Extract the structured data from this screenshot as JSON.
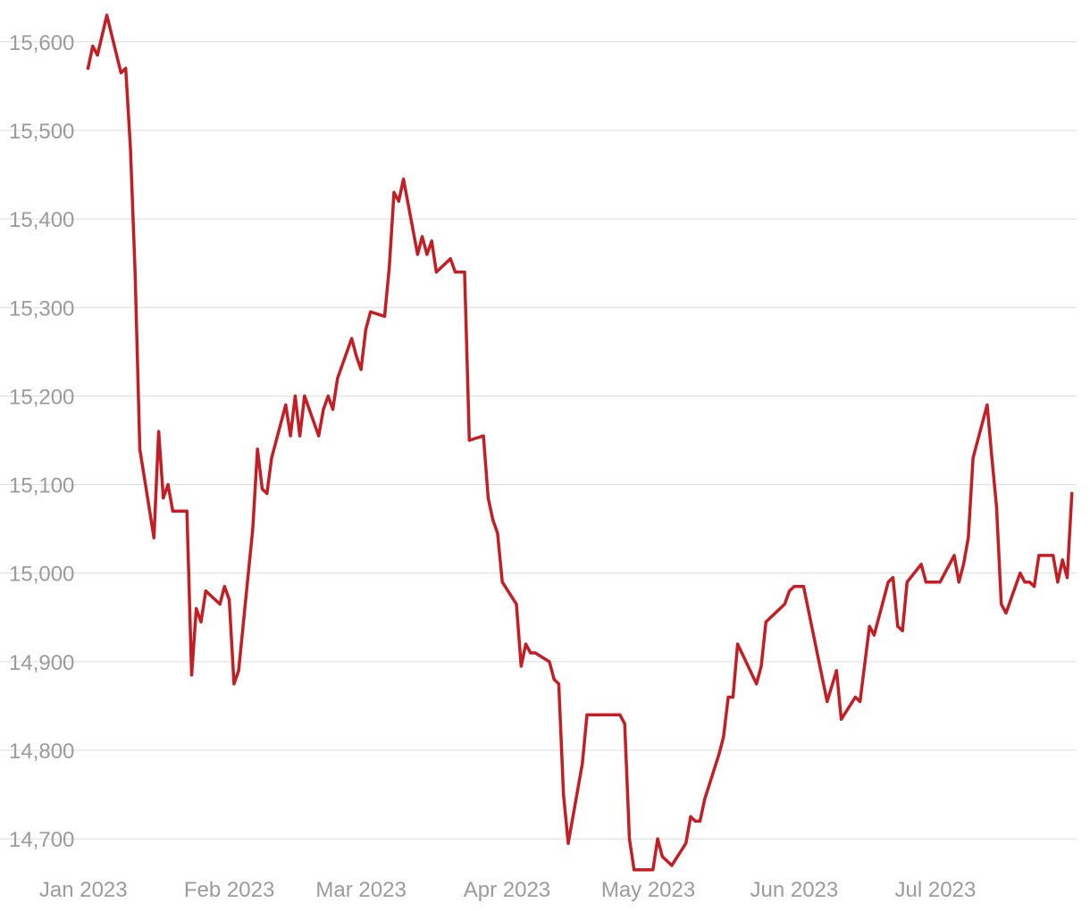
{
  "chart_data": {
    "type": "line",
    "title": "",
    "xlabel": "",
    "ylabel": "",
    "xlim": [
      "2022-12-31",
      "2023-07-31"
    ],
    "ylim": [
      14675,
      15625
    ],
    "grid": "horizontal",
    "colors": {
      "line": "#c41e24",
      "grid": "#dcdcdc",
      "tick_text": "#9b9b9b"
    },
    "y_ticks": [
      {
        "value": 14700,
        "label": "14,700"
      },
      {
        "value": 14800,
        "label": "14,800"
      },
      {
        "value": 14900,
        "label": "14,900"
      },
      {
        "value": 15000,
        "label": "15,000"
      },
      {
        "value": 15100,
        "label": "15,100"
      },
      {
        "value": 15200,
        "label": "15,200"
      },
      {
        "value": 15300,
        "label": "15,300"
      },
      {
        "value": 15400,
        "label": "15,400"
      },
      {
        "value": 15500,
        "label": "15,500"
      },
      {
        "value": 15600,
        "label": "15,600"
      }
    ],
    "x_ticks": [
      {
        "value": "2023-01-01",
        "label": "Jan 2023"
      },
      {
        "value": "2023-02-01",
        "label": "Feb 2023"
      },
      {
        "value": "2023-03-01",
        "label": "Mar 2023"
      },
      {
        "value": "2023-04-01",
        "label": "Apr 2023"
      },
      {
        "value": "2023-05-01",
        "label": "May 2023"
      },
      {
        "value": "2023-06-01",
        "label": "Jun 2023"
      },
      {
        "value": "2023-07-01",
        "label": "Jul 2023"
      }
    ],
    "series": [
      {
        "points": [
          [
            "2023-01-02",
            15570
          ],
          [
            "2023-01-03",
            15595
          ],
          [
            "2023-01-04",
            15585
          ],
          [
            "2023-01-06",
            15630
          ],
          [
            "2023-01-09",
            15565
          ],
          [
            "2023-01-10",
            15570
          ],
          [
            "2023-01-11",
            15480
          ],
          [
            "2023-01-12",
            15340
          ],
          [
            "2023-01-13",
            15140
          ],
          [
            "2023-01-16",
            15040
          ],
          [
            "2023-01-17",
            15160
          ],
          [
            "2023-01-18",
            15085
          ],
          [
            "2023-01-19",
            15100
          ],
          [
            "2023-01-20",
            15070
          ],
          [
            "2023-01-23",
            15070
          ],
          [
            "2023-01-24",
            14885
          ],
          [
            "2023-01-25",
            14960
          ],
          [
            "2023-01-26",
            14945
          ],
          [
            "2023-01-27",
            14980
          ],
          [
            "2023-01-30",
            14965
          ],
          [
            "2023-01-31",
            14985
          ],
          [
            "2023-02-01",
            14970
          ],
          [
            "2023-02-02",
            14875
          ],
          [
            "2023-02-03",
            14890
          ],
          [
            "2023-02-06",
            15050
          ],
          [
            "2023-02-07",
            15140
          ],
          [
            "2023-02-08",
            15095
          ],
          [
            "2023-02-09",
            15090
          ],
          [
            "2023-02-10",
            15130
          ],
          [
            "2023-02-13",
            15190
          ],
          [
            "2023-02-14",
            15155
          ],
          [
            "2023-02-15",
            15200
          ],
          [
            "2023-02-16",
            15155
          ],
          [
            "2023-02-17",
            15200
          ],
          [
            "2023-02-20",
            15155
          ],
          [
            "2023-02-21",
            15185
          ],
          [
            "2023-02-22",
            15200
          ],
          [
            "2023-02-23",
            15185
          ],
          [
            "2023-02-24",
            15220
          ],
          [
            "2023-02-27",
            15265
          ],
          [
            "2023-02-28",
            15245
          ],
          [
            "2023-03-01",
            15230
          ],
          [
            "2023-03-02",
            15275
          ],
          [
            "2023-03-03",
            15295
          ],
          [
            "2023-03-06",
            15290
          ],
          [
            "2023-03-07",
            15345
          ],
          [
            "2023-03-08",
            15430
          ],
          [
            "2023-03-09",
            15420
          ],
          [
            "2023-03-10",
            15445
          ],
          [
            "2023-03-13",
            15360
          ],
          [
            "2023-03-14",
            15380
          ],
          [
            "2023-03-15",
            15360
          ],
          [
            "2023-03-16",
            15375
          ],
          [
            "2023-03-17",
            15340
          ],
          [
            "2023-03-20",
            15355
          ],
          [
            "2023-03-21",
            15340
          ],
          [
            "2023-03-23",
            15340
          ],
          [
            "2023-03-24",
            15150
          ],
          [
            "2023-03-27",
            15155
          ],
          [
            "2023-03-28",
            15085
          ],
          [
            "2023-03-29",
            15060
          ],
          [
            "2023-03-30",
            15045
          ],
          [
            "2023-03-31",
            14990
          ],
          [
            "2023-04-03",
            14965
          ],
          [
            "2023-04-04",
            14895
          ],
          [
            "2023-04-05",
            14920
          ],
          [
            "2023-04-06",
            14910
          ],
          [
            "2023-04-07",
            14910
          ],
          [
            "2023-04-10",
            14900
          ],
          [
            "2023-04-11",
            14880
          ],
          [
            "2023-04-12",
            14875
          ],
          [
            "2023-04-13",
            14750
          ],
          [
            "2023-04-14",
            14695
          ],
          [
            "2023-04-17",
            14785
          ],
          [
            "2023-04-18",
            14840
          ],
          [
            "2023-04-25",
            14840
          ],
          [
            "2023-04-26",
            14830
          ],
          [
            "2023-04-27",
            14700
          ],
          [
            "2023-04-28",
            14665
          ],
          [
            "2023-05-02",
            14665
          ],
          [
            "2023-05-03",
            14700
          ],
          [
            "2023-05-04",
            14680
          ],
          [
            "2023-05-06",
            14670
          ],
          [
            "2023-05-09",
            14695
          ],
          [
            "2023-05-10",
            14725
          ],
          [
            "2023-05-11",
            14720
          ],
          [
            "2023-05-12",
            14720
          ],
          [
            "2023-05-13",
            14745
          ],
          [
            "2023-05-16",
            14795
          ],
          [
            "2023-05-17",
            14815
          ],
          [
            "2023-05-18",
            14860
          ],
          [
            "2023-05-19",
            14860
          ],
          [
            "2023-05-20",
            14920
          ],
          [
            "2023-05-24",
            14875
          ],
          [
            "2023-05-25",
            14895
          ],
          [
            "2023-05-26",
            14945
          ],
          [
            "2023-05-30",
            14965
          ],
          [
            "2023-05-31",
            14980
          ],
          [
            "2023-06-01",
            14985
          ],
          [
            "2023-06-03",
            14985
          ],
          [
            "2023-06-08",
            14855
          ],
          [
            "2023-06-10",
            14890
          ],
          [
            "2023-06-11",
            14835
          ],
          [
            "2023-06-14",
            14860
          ],
          [
            "2023-06-15",
            14855
          ],
          [
            "2023-06-17",
            14940
          ],
          [
            "2023-06-18",
            14930
          ],
          [
            "2023-06-21",
            14990
          ],
          [
            "2023-06-22",
            14995
          ],
          [
            "2023-06-23",
            14940
          ],
          [
            "2023-06-24",
            14935
          ],
          [
            "2023-06-25",
            14990
          ],
          [
            "2023-06-28",
            15010
          ],
          [
            "2023-06-29",
            14990
          ],
          [
            "2023-07-02",
            14990
          ],
          [
            "2023-07-05",
            15020
          ],
          [
            "2023-07-06",
            14990
          ],
          [
            "2023-07-07",
            15010
          ],
          [
            "2023-07-08",
            15040
          ],
          [
            "2023-07-09",
            15130
          ],
          [
            "2023-07-12",
            15190
          ],
          [
            "2023-07-13",
            15130
          ],
          [
            "2023-07-14",
            15075
          ],
          [
            "2023-07-15",
            14965
          ],
          [
            "2023-07-16",
            14955
          ],
          [
            "2023-07-19",
            15000
          ],
          [
            "2023-07-20",
            14990
          ],
          [
            "2023-07-21",
            14990
          ],
          [
            "2023-07-22",
            14985
          ],
          [
            "2023-07-23",
            15020
          ],
          [
            "2023-07-26",
            15020
          ],
          [
            "2023-07-27",
            14990
          ],
          [
            "2023-07-28",
            15015
          ],
          [
            "2023-07-29",
            14995
          ],
          [
            "2023-07-30",
            15090
          ]
        ]
      }
    ]
  }
}
